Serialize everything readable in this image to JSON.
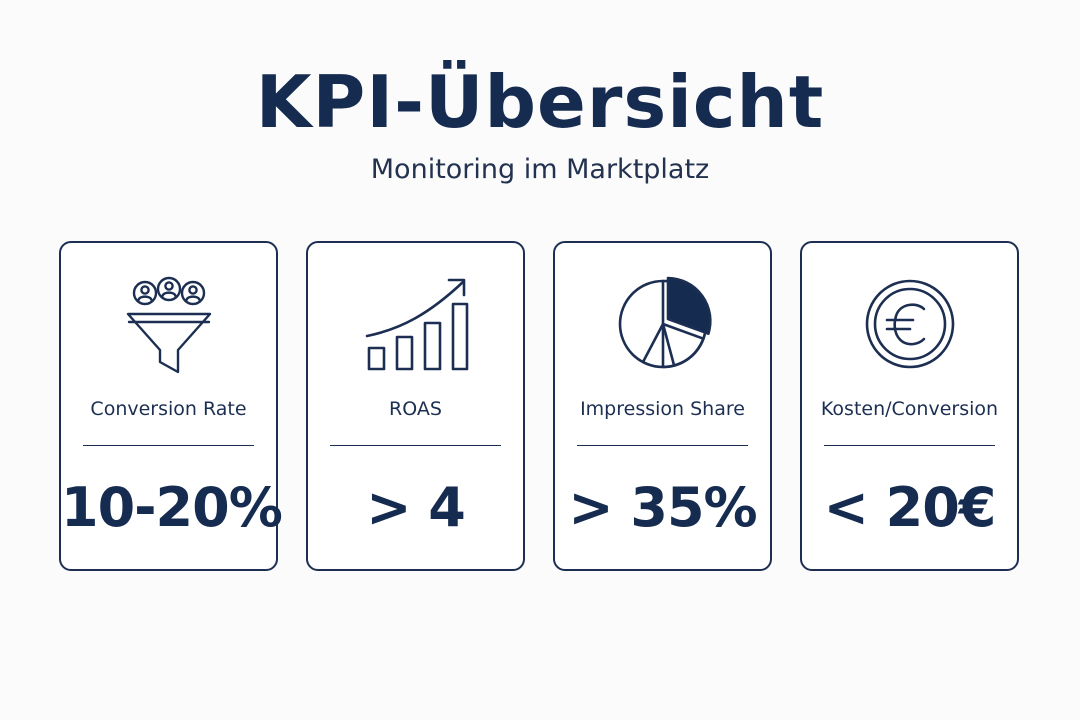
{
  "header": {
    "title": "KPI-Übersicht",
    "subtitle": "Monitoring im Marktplatz"
  },
  "colors": {
    "primary": "#152b4f",
    "background": "#fbfbfc",
    "card_border": "#1c2f52"
  },
  "cards": [
    {
      "icon": "funnel-users-icon",
      "label": "Conversion Rate",
      "value": "10-20%"
    },
    {
      "icon": "growth-chart-icon",
      "label": "ROAS",
      "value": "> 4"
    },
    {
      "icon": "pie-chart-icon",
      "label": "Impression Share",
      "value": "> 35%"
    },
    {
      "icon": "euro-coin-icon",
      "label": "Kosten/Conversion",
      "value": "< 20€"
    }
  ]
}
